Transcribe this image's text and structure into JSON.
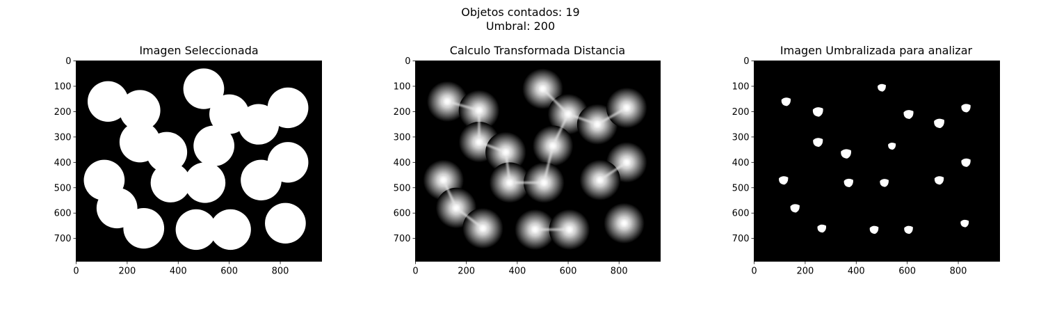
{
  "figure": {
    "suptitle_line1": "Objetos contados: 19",
    "suptitle_line2": "Umbral: 200"
  },
  "chart_data": [
    {
      "type": "image",
      "title": "Imagen Seleccionada",
      "image_size": [
        962,
        790
      ],
      "xlim": [
        0,
        962
      ],
      "ylim": [
        790,
        0
      ],
      "xticks": [
        0,
        200,
        400,
        600,
        800
      ],
      "yticks": [
        0,
        100,
        200,
        300,
        400,
        500,
        600,
        700
      ],
      "background_color": "#000000",
      "foreground_color": "#ffffff",
      "circles": [
        {
          "cx": 125,
          "cy": 160,
          "r": 80
        },
        {
          "cx": 250,
          "cy": 195,
          "r": 80
        },
        {
          "cx": 500,
          "cy": 110,
          "r": 80
        },
        {
          "cx": 600,
          "cy": 210,
          "r": 78
        },
        {
          "cx": 715,
          "cy": 250,
          "r": 80
        },
        {
          "cx": 830,
          "cy": 185,
          "r": 80
        },
        {
          "cx": 250,
          "cy": 320,
          "r": 80
        },
        {
          "cx": 355,
          "cy": 360,
          "r": 80
        },
        {
          "cx": 540,
          "cy": 335,
          "r": 80
        },
        {
          "cx": 830,
          "cy": 400,
          "r": 80
        },
        {
          "cx": 110,
          "cy": 470,
          "r": 80
        },
        {
          "cx": 370,
          "cy": 480,
          "r": 78
        },
        {
          "cx": 505,
          "cy": 480,
          "r": 80
        },
        {
          "cx": 725,
          "cy": 470,
          "r": 80
        },
        {
          "cx": 160,
          "cy": 580,
          "r": 80
        },
        {
          "cx": 265,
          "cy": 660,
          "r": 80
        },
        {
          "cx": 470,
          "cy": 665,
          "r": 80
        },
        {
          "cx": 605,
          "cy": 665,
          "r": 80
        },
        {
          "cx": 820,
          "cy": 640,
          "r": 80
        }
      ]
    },
    {
      "type": "image",
      "title": "Calculo Transformada Distancia",
      "image_size": [
        962,
        790
      ],
      "xlim": [
        0,
        962
      ],
      "ylim": [
        790,
        0
      ],
      "xticks": [
        0,
        200,
        400,
        600,
        800
      ],
      "yticks": [
        0,
        100,
        200,
        300,
        400,
        500,
        600,
        700
      ],
      "background_color": "#000000",
      "peaks": [
        {
          "x": 125,
          "y": 160
        },
        {
          "x": 250,
          "y": 195
        },
        {
          "x": 500,
          "y": 110
        },
        {
          "x": 600,
          "y": 210
        },
        {
          "x": 715,
          "y": 250
        },
        {
          "x": 830,
          "y": 185
        },
        {
          "x": 250,
          "y": 320
        },
        {
          "x": 355,
          "y": 360
        },
        {
          "x": 540,
          "y": 335
        },
        {
          "x": 830,
          "y": 400
        },
        {
          "x": 110,
          "y": 470
        },
        {
          "x": 370,
          "y": 480
        },
        {
          "x": 505,
          "y": 480
        },
        {
          "x": 725,
          "y": 470
        },
        {
          "x": 160,
          "y": 580
        },
        {
          "x": 265,
          "y": 660
        },
        {
          "x": 470,
          "y": 665
        },
        {
          "x": 605,
          "y": 665
        },
        {
          "x": 820,
          "y": 640
        }
      ],
      "ridges": [
        [
          [
            125,
            160
          ],
          [
            250,
            195
          ]
        ],
        [
          [
            250,
            195
          ],
          [
            250,
            320
          ]
        ],
        [
          [
            250,
            320
          ],
          [
            355,
            360
          ]
        ],
        [
          [
            355,
            360
          ],
          [
            370,
            480
          ]
        ],
        [
          [
            370,
            480
          ],
          [
            505,
            480
          ]
        ],
        [
          [
            505,
            480
          ],
          [
            540,
            335
          ]
        ],
        [
          [
            540,
            335
          ],
          [
            600,
            210
          ]
        ],
        [
          [
            600,
            210
          ],
          [
            500,
            110
          ]
        ],
        [
          [
            600,
            210
          ],
          [
            715,
            250
          ]
        ],
        [
          [
            715,
            250
          ],
          [
            830,
            185
          ]
        ],
        [
          [
            725,
            470
          ],
          [
            830,
            400
          ]
        ],
        [
          [
            110,
            470
          ],
          [
            160,
            580
          ]
        ],
        [
          [
            160,
            580
          ],
          [
            265,
            660
          ]
        ],
        [
          [
            470,
            665
          ],
          [
            605,
            665
          ]
        ]
      ]
    },
    {
      "type": "image",
      "title": "Imagen Umbralizada para analizar",
      "image_size": [
        962,
        790
      ],
      "xlim": [
        0,
        962
      ],
      "ylim": [
        790,
        0
      ],
      "xticks": [
        0,
        200,
        400,
        600,
        800
      ],
      "yticks": [
        0,
        100,
        200,
        300,
        400,
        500,
        600,
        700
      ],
      "background_color": "#000000",
      "foreground_color": "#ffffff",
      "blobs": [
        {
          "x": 125,
          "y": 160,
          "size": 18
        },
        {
          "x": 250,
          "y": 200,
          "size": 20
        },
        {
          "x": 500,
          "y": 105,
          "size": 16
        },
        {
          "x": 605,
          "y": 210,
          "size": 19
        },
        {
          "x": 725,
          "y": 245,
          "size": 20
        },
        {
          "x": 830,
          "y": 185,
          "size": 18
        },
        {
          "x": 250,
          "y": 320,
          "size": 19
        },
        {
          "x": 360,
          "y": 365,
          "size": 20
        },
        {
          "x": 540,
          "y": 335,
          "size": 15
        },
        {
          "x": 830,
          "y": 400,
          "size": 18
        },
        {
          "x": 115,
          "y": 470,
          "size": 18
        },
        {
          "x": 370,
          "y": 480,
          "size": 18
        },
        {
          "x": 510,
          "y": 480,
          "size": 17
        },
        {
          "x": 725,
          "y": 470,
          "size": 18
        },
        {
          "x": 160,
          "y": 580,
          "size": 18
        },
        {
          "x": 265,
          "y": 660,
          "size": 17
        },
        {
          "x": 470,
          "y": 665,
          "size": 17
        },
        {
          "x": 605,
          "y": 665,
          "size": 17
        },
        {
          "x": 825,
          "y": 640,
          "size": 16
        }
      ]
    }
  ]
}
